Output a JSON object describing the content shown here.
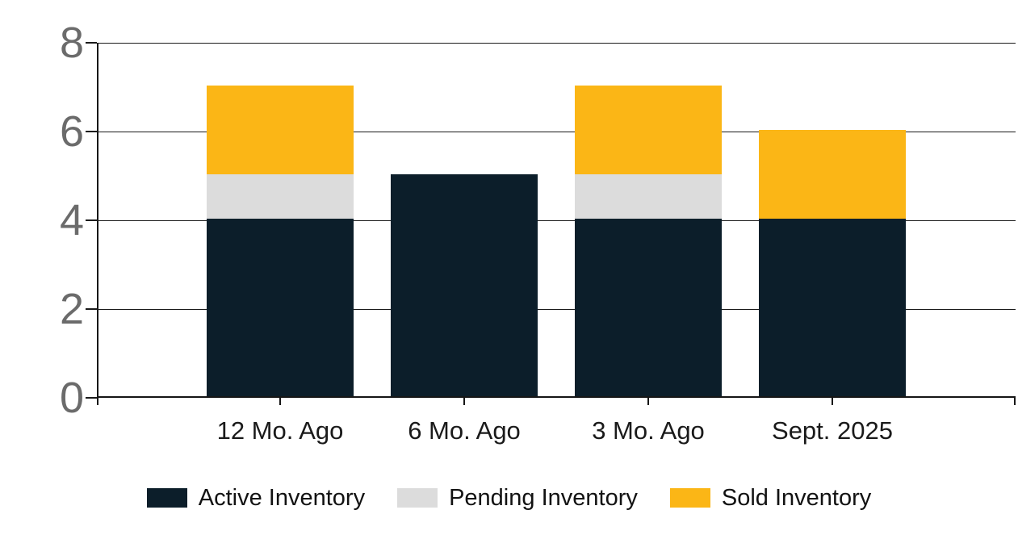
{
  "chart_data": {
    "type": "bar",
    "stacked": true,
    "title": "",
    "categories": [
      "12 Mo. Ago",
      "6 Mo. Ago",
      "3 Mo. Ago",
      "Sept. 2025"
    ],
    "series": [
      {
        "name": "Active Inventory",
        "color": "#0C1E2A",
        "values": [
          4,
          5,
          4,
          4
        ]
      },
      {
        "name": "Pending Inventory",
        "color": "#DCDCDC",
        "values": [
          1,
          0,
          1,
          0
        ]
      },
      {
        "name": "Sold Inventory",
        "color": "#FBB616",
        "values": [
          2,
          0,
          2,
          2
        ]
      }
    ],
    "totals": [
      7,
      5,
      7,
      6
    ],
    "ylim": [
      0,
      8
    ],
    "yticks": [
      0,
      2,
      4,
      6,
      8
    ],
    "grid": true,
    "legend_position": "bottom"
  },
  "colors": {
    "axis": "#161616",
    "gridline": "#1A1A1A",
    "y_label_text": "#6B6B6B",
    "x_label_text": "#1A1A1A",
    "legend_text": "#121212",
    "background": "#FFFFFF"
  }
}
